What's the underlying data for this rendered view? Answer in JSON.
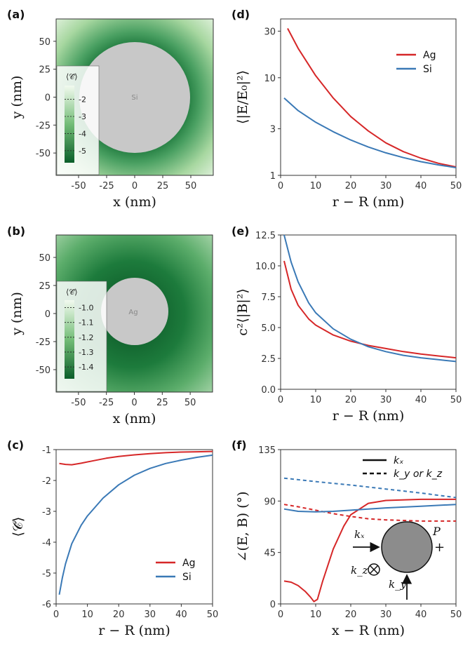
{
  "colors": {
    "ag": "#d62728",
    "si": "#3a79b6",
    "disk": "#c8c8c8",
    "green_dark": "#0b5e2a",
    "green_light": "#eaf6e6"
  },
  "chart_data": [
    {
      "id": "a",
      "panel_label": "(a)",
      "type": "heatmap",
      "xlabel": "x (nm)",
      "ylabel": "y (nm)",
      "xlim": [
        -70,
        70
      ],
      "ylim": [
        -70,
        70
      ],
      "xticks": [
        -50,
        -25,
        0,
        25,
        50
      ],
      "yticks": [
        50,
        25,
        0,
        -25,
        -50
      ],
      "particle_label": "Si",
      "particle_radius": 50,
      "colorbar_title": "⟨𝒞̄⟩",
      "colorbar_ticks": [
        "-2",
        "-3",
        "-4",
        "-5"
      ],
      "colorbar_range": [
        -1.2,
        -5.7
      ]
    },
    {
      "id": "b",
      "panel_label": "(b)",
      "type": "heatmap",
      "xlabel": "x (nm)",
      "ylabel": "y (nm)",
      "xlim": [
        -70,
        70
      ],
      "ylim": [
        -70,
        70
      ],
      "xticks": [
        -50,
        -25,
        0,
        25,
        50
      ],
      "yticks": [
        50,
        25,
        0,
        -25,
        -50
      ],
      "particle_label": "Ag",
      "particle_radius": 30,
      "colorbar_title": "⟨𝒞̄⟩",
      "colorbar_ticks": [
        "-1.0",
        "-1.1",
        "-1.2",
        "-1.3",
        "-1.4"
      ],
      "colorbar_range": [
        -0.95,
        -1.48
      ]
    },
    {
      "id": "c",
      "panel_label": "(c)",
      "type": "line",
      "xlabel": "r − R (nm)",
      "ylabel": "⟨𝒞̄⟩",
      "xlim": [
        0,
        50
      ],
      "ylim": [
        -6,
        -1
      ],
      "xticks": [
        0,
        10,
        20,
        30,
        40,
        50
      ],
      "yticks": [
        -1,
        -2,
        -3,
        -4,
        -5,
        -6
      ],
      "legend_position": "lower-right",
      "series": [
        {
          "name": "Ag",
          "color_key": "ag",
          "dash": false,
          "x": [
            1,
            3,
            5,
            8,
            12,
            16,
            20,
            25,
            30,
            35,
            40,
            45,
            50
          ],
          "y": [
            -1.45,
            -1.48,
            -1.49,
            -1.44,
            -1.36,
            -1.28,
            -1.22,
            -1.17,
            -1.13,
            -1.1,
            -1.08,
            -1.07,
            -1.06
          ]
        },
        {
          "name": "Si",
          "color_key": "si",
          "dash": false,
          "x": [
            1,
            2,
            3,
            5,
            8,
            10,
            15,
            20,
            25,
            30,
            35,
            40,
            45,
            50
          ],
          "y": [
            -5.7,
            -5.15,
            -4.7,
            -4.05,
            -3.45,
            -3.15,
            -2.57,
            -2.14,
            -1.83,
            -1.61,
            -1.45,
            -1.34,
            -1.25,
            -1.18
          ]
        }
      ]
    },
    {
      "id": "d",
      "panel_label": "(d)",
      "type": "line",
      "log_y": true,
      "xlabel": "r − R (nm)",
      "ylabel": "⟨|E/E₀|²⟩",
      "xlim": [
        0,
        50
      ],
      "ylim": [
        1,
        40
      ],
      "xticks": [
        0,
        10,
        20,
        30,
        40,
        50
      ],
      "yticks": [
        1,
        3,
        10,
        30
      ],
      "legend_position": "upper-right",
      "series": [
        {
          "name": "Ag",
          "color_key": "ag",
          "dash": false,
          "x": [
            2,
            5,
            10,
            15,
            20,
            25,
            30,
            35,
            40,
            45,
            50
          ],
          "y": [
            32,
            20,
            10.5,
            6.2,
            4.0,
            2.85,
            2.15,
            1.75,
            1.5,
            1.33,
            1.22
          ]
        },
        {
          "name": "Si",
          "color_key": "si",
          "dash": false,
          "x": [
            1,
            5,
            10,
            15,
            20,
            25,
            30,
            35,
            40,
            45,
            50
          ],
          "y": [
            6.2,
            4.6,
            3.5,
            2.8,
            2.3,
            1.95,
            1.7,
            1.52,
            1.38,
            1.28,
            1.2
          ]
        }
      ]
    },
    {
      "id": "e",
      "panel_label": "(e)",
      "type": "line",
      "xlabel": "r − R (nm)",
      "ylabel": "c²⟨|B|²⟩",
      "xlim": [
        0,
        50
      ],
      "ylim": [
        0,
        12.5
      ],
      "xticks": [
        0,
        10,
        20,
        30,
        40,
        50
      ],
      "yticks": [
        0.0,
        2.5,
        5.0,
        7.5,
        10.0,
        12.5
      ],
      "series": [
        {
          "name": "Ag",
          "color_key": "ag",
          "dash": false,
          "x": [
            1,
            3,
            5,
            8,
            10,
            15,
            20,
            25,
            30,
            35,
            40,
            45,
            50
          ],
          "y": [
            10.4,
            8.1,
            6.8,
            5.7,
            5.2,
            4.4,
            3.9,
            3.55,
            3.3,
            3.05,
            2.85,
            2.7,
            2.55
          ]
        },
        {
          "name": "Si",
          "color_key": "si",
          "dash": false,
          "x": [
            1,
            3,
            5,
            8,
            10,
            15,
            20,
            25,
            30,
            35,
            40,
            45,
            50
          ],
          "y": [
            12.9,
            10.3,
            8.7,
            7.0,
            6.2,
            4.9,
            4.05,
            3.45,
            3.05,
            2.75,
            2.55,
            2.4,
            2.25
          ]
        }
      ]
    },
    {
      "id": "f",
      "panel_label": "(f)",
      "type": "line",
      "xlabel": "x − R (nm)",
      "ylabel": "∠(E, B) (°)",
      "xlim": [
        0,
        50
      ],
      "ylim": [
        0,
        135
      ],
      "xticks": [
        0,
        10,
        20,
        30,
        40,
        50
      ],
      "yticks": [
        0,
        45,
        90,
        135
      ],
      "legend_position": "top-right",
      "legend_entries": [
        {
          "label": "kₓ",
          "dash": false
        },
        {
          "label": "k_y or k_z",
          "dash": true
        }
      ],
      "series": [
        {
          "color_key": "ag",
          "dash": false,
          "x": [
            1,
            3,
            5,
            7,
            8.5,
            9.5,
            10.5,
            12,
            15,
            18,
            20,
            25,
            30,
            40,
            50
          ],
          "y": [
            20,
            19,
            16,
            11,
            6,
            2,
            4,
            20,
            48,
            68,
            78,
            88,
            90.5,
            91.5,
            91.5
          ]
        },
        {
          "color_key": "ag",
          "dash": true,
          "x": [
            1,
            5,
            10,
            15,
            20,
            25,
            30,
            35,
            40,
            45,
            50
          ],
          "y": [
            87,
            85,
            82,
            79,
            76.5,
            74.5,
            73.5,
            73,
            72.5,
            72.5,
            72.5
          ]
        },
        {
          "color_key": "si",
          "dash": false,
          "x": [
            1,
            5,
            10,
            15,
            20,
            25,
            30,
            40,
            50
          ],
          "y": [
            83,
            81,
            80.5,
            81,
            82,
            83,
            84,
            85.5,
            87
          ]
        },
        {
          "color_key": "si",
          "dash": true,
          "x": [
            1,
            10,
            20,
            30,
            40,
            50
          ],
          "y": [
            110,
            107,
            104,
            100.5,
            97,
            93
          ]
        }
      ],
      "inset": {
        "kx": "kₓ",
        "ky": "k_y",
        "kz": "k_z",
        "p": "P",
        "plus": "+"
      }
    }
  ]
}
